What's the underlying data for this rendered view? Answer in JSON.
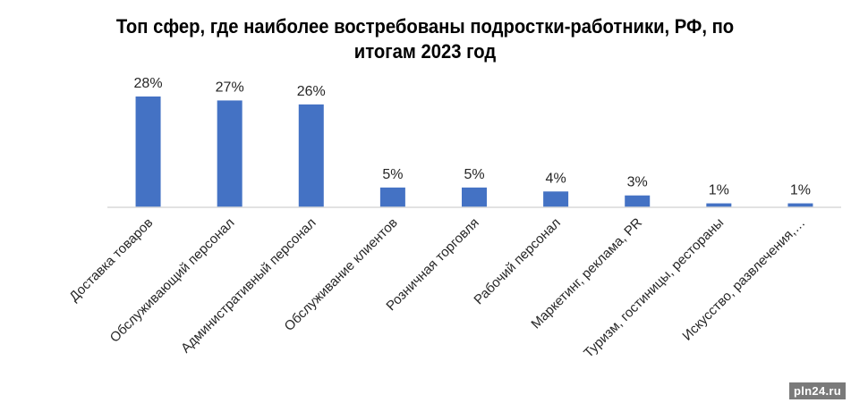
{
  "chart_data": {
    "type": "bar",
    "title": "Топ сфер, где наиболее востребованы подростки-работники, РФ, по итогам 2023 год",
    "categories": [
      "Доставка товаров",
      "Обслуживающий персонал",
      "Административный персонал",
      "Обслуживание клиентов",
      "Розничная торговля",
      "Рабочий персонал",
      "Маркетинг, реклама, PR",
      "Туризм, гостиницы, рестораны",
      "Искусство, развлечения,…"
    ],
    "values": [
      28,
      27,
      26,
      5,
      5,
      4,
      3,
      1,
      1
    ],
    "data_labels": [
      "28%",
      "27%",
      "26%",
      "5%",
      "5%",
      "4%",
      "3%",
      "1%",
      "1%"
    ],
    "unit": "%",
    "ylim": [
      0,
      28
    ],
    "grid": false,
    "legend": "none",
    "bar_color": "#4472c4",
    "axis_color": "#d9d9d9"
  },
  "watermark": "pln24.ru"
}
